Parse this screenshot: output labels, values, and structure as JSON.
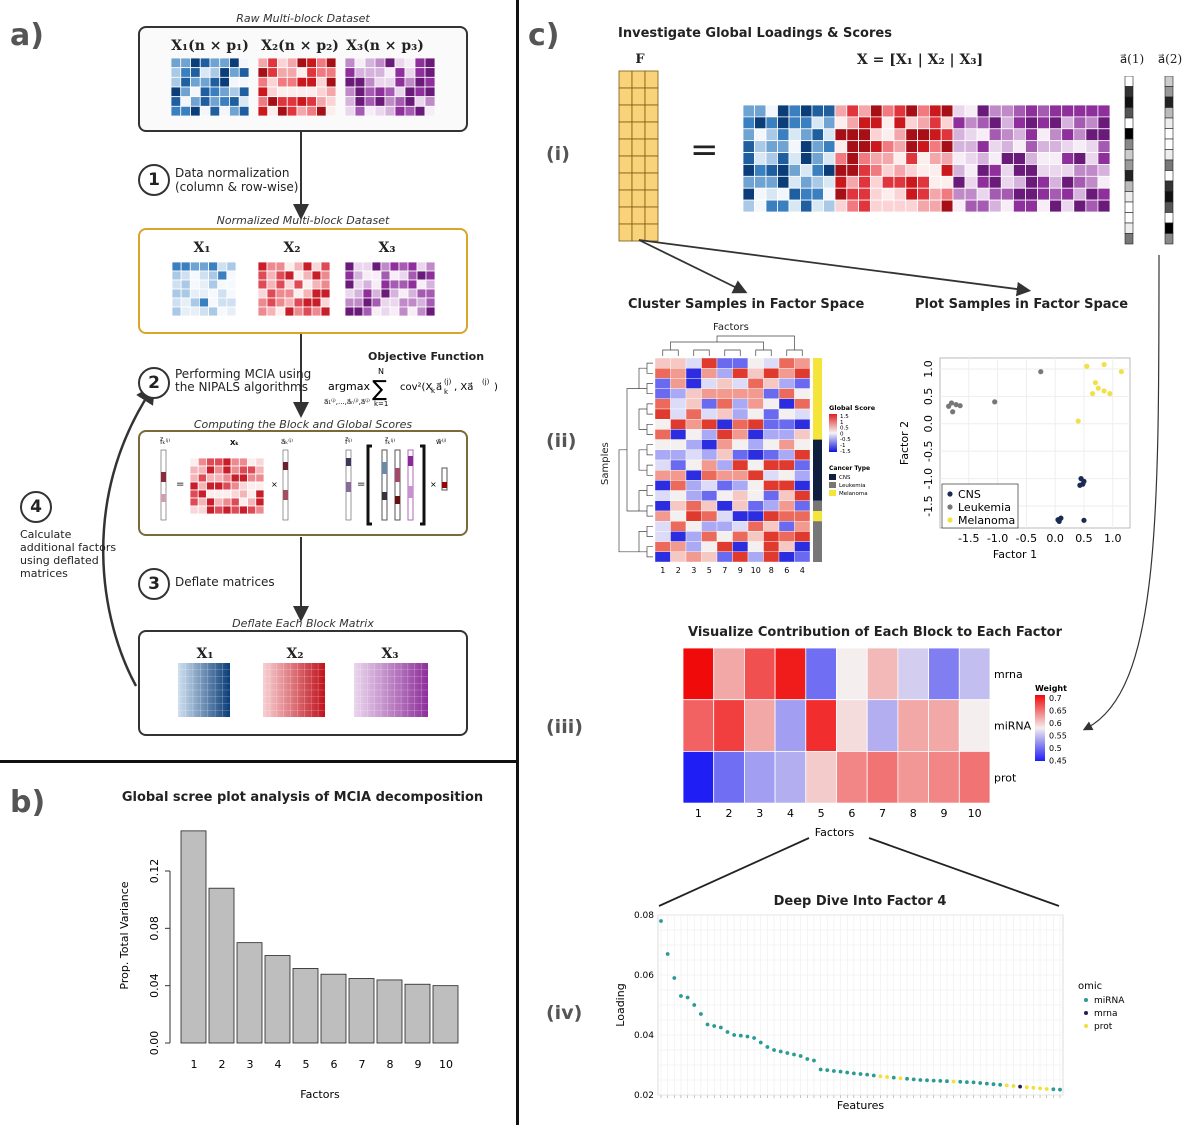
{
  "panel_a": {
    "letter": "a)",
    "raw_caption": "Raw Multi-block Dataset",
    "raw_blocks": [
      "X₁(n × p₁)",
      "X₂(n × p₂)",
      "X₃(n × p₃)"
    ],
    "step1_num": "1",
    "step1_line1": "Data normalization",
    "step1_line2": "(column & row-wise)",
    "norm_caption": "Normalized Multi-block Dataset",
    "norm_blocks": [
      "X₁",
      "X₂",
      "X₃"
    ],
    "step2_num": "2",
    "step2_line1": "Performing MCIA using",
    "step2_line2": "the NIPALS algorithms",
    "objective_title": "Objective Function",
    "objective_formula": "argmax Σ cov²(X_k a_k^(j), X a^(j))",
    "compute_caption": "Computing the Block and Global Scores",
    "step3_num": "3",
    "step3_text": "Deflate matrices",
    "deflate_caption": "Deflate Each Block Matrix",
    "deflate_blocks": [
      "X₁",
      "X₂",
      "X₃"
    ],
    "step4_num": "4",
    "step4_lines": [
      "Calculate",
      "additional factors",
      "using deflated",
      "matrices"
    ]
  },
  "panel_b": {
    "letter": "b)",
    "title": "Global scree plot analysis of MCIA decomposition"
  },
  "chart_data": [
    {
      "type": "bar",
      "title": "Global scree plot analysis of MCIA decomposition",
      "xlabel": "Factors",
      "ylabel": "Prop. Total Variance",
      "categories": [
        "1",
        "2",
        "3",
        "4",
        "5",
        "6",
        "7",
        "8",
        "9",
        "10"
      ],
      "values": [
        0.148,
        0.108,
        0.07,
        0.061,
        0.052,
        0.048,
        0.045,
        0.044,
        0.041,
        0.04
      ],
      "ylim": [
        0,
        0.15
      ],
      "yticks": [
        "0.00",
        "0.04",
        "0.08",
        "0.12"
      ]
    },
    {
      "type": "scatter",
      "title": "Plot Samples in Factor Space",
      "xlabel": "Factor 1",
      "ylabel": "Factor 2",
      "xticks": [
        "-1.5",
        "-1.0",
        "-0.5",
        "0.0",
        "0.5",
        "1.0"
      ],
      "yticks": [
        "1.0",
        "0.5",
        "0.0",
        "-0.5",
        "-1.0",
        "-1.5"
      ],
      "xlim": [
        -2.0,
        1.3
      ],
      "ylim": [
        -1.9,
        1.2
      ],
      "series": [
        {
          "name": "CNS",
          "color": "#1a2a52",
          "points": [
            [
              0.45,
              -1.0
            ],
            [
              0.5,
              -1.05
            ],
            [
              0.48,
              -1.1
            ],
            [
              0.43,
              -1.12
            ],
            [
              0.05,
              -1.75
            ],
            [
              0.1,
              -1.72
            ],
            [
              0.07,
              -1.78
            ],
            [
              0.5,
              -1.76
            ]
          ]
        },
        {
          "name": "Leukemia",
          "color": "#777777",
          "points": [
            [
              -1.85,
              0.32
            ],
            [
              -1.8,
              0.38
            ],
            [
              -1.72,
              0.35
            ],
            [
              -1.65,
              0.33
            ],
            [
              -1.78,
              0.22
            ],
            [
              -1.05,
              0.4
            ],
            [
              -0.25,
              0.95
            ]
          ]
        },
        {
          "name": "Melanoma",
          "color": "#f2e04a",
          "points": [
            [
              0.55,
              1.05
            ],
            [
              0.85,
              1.08
            ],
            [
              1.15,
              0.95
            ],
            [
              0.7,
              0.75
            ],
            [
              0.75,
              0.65
            ],
            [
              0.85,
              0.6
            ],
            [
              0.95,
              0.55
            ],
            [
              0.65,
              0.55
            ],
            [
              0.4,
              0.05
            ]
          ]
        }
      ],
      "legend_position": "bottom-left"
    },
    {
      "type": "heatmap",
      "title": "Visualize Contribution of Each Block to Each Factor",
      "xlabel": "Factors",
      "categories": [
        "1",
        "2",
        "3",
        "4",
        "5",
        "6",
        "7",
        "8",
        "9",
        "10"
      ],
      "rows": [
        "mrna",
        "miRNA",
        "prot"
      ],
      "values": [
        [
          0.7,
          0.61,
          0.66,
          0.69,
          0.49,
          0.57,
          0.6,
          0.55,
          0.5,
          0.54
        ],
        [
          0.65,
          0.67,
          0.61,
          0.52,
          0.68,
          0.58,
          0.53,
          0.61,
          0.61,
          0.57
        ],
        [
          0.44,
          0.49,
          0.52,
          0.53,
          0.59,
          0.63,
          0.64,
          0.62,
          0.63,
          0.64
        ]
      ],
      "legend_title": "Weight",
      "legend_ticks": [
        "0.7",
        "0.65",
        "0.6",
        "0.55",
        "0.5",
        "0.45"
      ],
      "range": [
        0.44,
        0.7
      ]
    },
    {
      "type": "scatter",
      "title": "Deep Dive Into Factor 4",
      "xlabel": "Features",
      "ylabel": "Loading",
      "yticks": [
        "0.08",
        "0.06",
        "0.04",
        "0.02"
      ],
      "ylim": [
        0.02,
        0.08
      ],
      "legend_title": "omic",
      "series": [
        {
          "name": "miRNA",
          "color": "#2a9a94"
        },
        {
          "name": "mrna",
          "color": "#241f4e"
        },
        {
          "name": "prot",
          "color": "#f0e03a"
        }
      ],
      "loadings": [
        0.078,
        0.067,
        0.059,
        0.053,
        0.0525,
        0.05,
        0.047,
        0.0435,
        0.043,
        0.0425,
        0.041,
        0.04,
        0.0398,
        0.0395,
        0.039,
        0.0375,
        0.036,
        0.035,
        0.0345,
        0.034,
        0.0335,
        0.033,
        0.032,
        0.0315,
        0.0285,
        0.0283,
        0.028,
        0.0278,
        0.0275,
        0.0272,
        0.027,
        0.0268,
        0.0265,
        0.0262,
        0.026,
        0.0258,
        0.0256,
        0.0254,
        0.0252,
        0.025,
        0.0249,
        0.0248,
        0.0247,
        0.0246,
        0.0245,
        0.0244,
        0.0243,
        0.0242,
        0.024,
        0.0238,
        0.0236,
        0.0234,
        0.0232,
        0.023,
        0.0228,
        0.0226,
        0.0224,
        0.0222,
        0.022,
        0.0219,
        0.0218
      ],
      "omics": [
        "m",
        "m",
        "m",
        "m",
        "m",
        "m",
        "m",
        "m",
        "m",
        "m",
        "m",
        "m",
        "m",
        "m",
        "m",
        "m",
        "m",
        "m",
        "m",
        "m",
        "m",
        "m",
        "m",
        "m",
        "m",
        "m",
        "m",
        "m",
        "m",
        "m",
        "m",
        "m",
        "m",
        "p",
        "p",
        "m",
        "p",
        "m",
        "m",
        "m",
        "m",
        "m",
        "m",
        "m",
        "p",
        "m",
        "m",
        "m",
        "m",
        "m",
        "m",
        "m",
        "p",
        "p",
        "r",
        "p",
        "p",
        "p",
        "p",
        "m",
        "m"
      ]
    }
  ],
  "panel_c": {
    "letter": "c)",
    "title_i": "Investigate Global Loadings & Scores",
    "roman_i": "(i)",
    "F_label": "F",
    "X_eq": "X = [X₁ | X₂ | X₃]",
    "equals": "=",
    "a1_label": "a⃗(1)",
    "a2_label": "a⃗(2)",
    "cluster_title": "Cluster Samples in Factor Space",
    "plot_title": "Plot Samples in Factor Space",
    "roman_ii": "(ii)",
    "hm_factors_label": "Factors",
    "hm_samples_label": "Samples",
    "hm_col_labels": [
      "1",
      "2",
      "3",
      "5",
      "7",
      "9",
      "10",
      "8",
      "6",
      "4"
    ],
    "hm_legend_title": "Global Score",
    "hm_legend_ticks": [
      "1.5",
      "1",
      "0.5",
      "0",
      "-0.5",
      "-1",
      "-1.5"
    ],
    "hm_cancer_title": "Cancer Type",
    "hm_cancer_items": [
      "CNS",
      "Leukemia",
      "Melanoma"
    ],
    "roman_iii": "(iii)",
    "roman_iv": "(iv)"
  }
}
